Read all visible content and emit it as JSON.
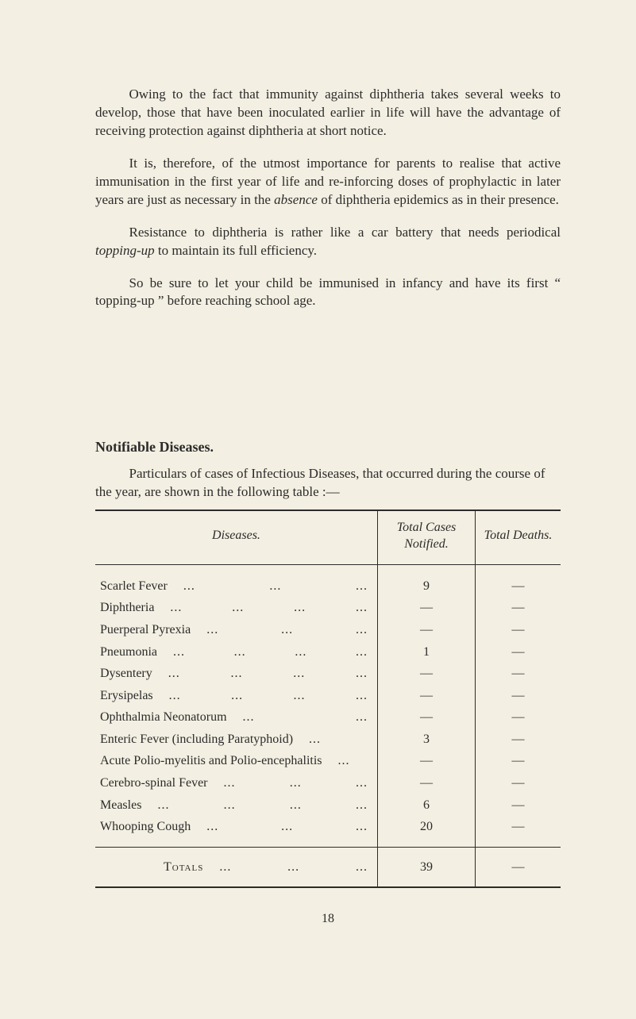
{
  "paragraphs": {
    "p1": "Owing to the fact that immunity against diphtheria takes several weeks to develop, those that have been inoculated earlier in life will have the advantage of receiving protection against diphtheria at short notice.",
    "p2_a": "It is, therefore, of the utmost importance for parents to realise that active immunisation in the first year of life and re-inforcing doses of prophylactic in later years are just as necessary in the ",
    "p2_italic": "absence",
    "p2_b": " of diphtheria epidemics as in their presence.",
    "p3_a": "Resistance to diphtheria is rather like a car battery that needs periodical ",
    "p3_italic": "topping-up",
    "p3_b": " to maintain its full efficiency.",
    "p4": "So be sure to let your child be immunised in infancy and have its first “ topping-up ” before reaching school age."
  },
  "section_heading": "Notifiable Diseases.",
  "lead": "Particulars of cases of Infectious Diseases, that occurred during the course of the year, are shown in the following table :—",
  "table": {
    "headers": {
      "diseases": "Diseases.",
      "cases": "Total Cases Notified.",
      "deaths": "Total Deaths."
    },
    "rows": [
      {
        "label": "Scarlet Fever",
        "dots": 3,
        "cases": "9",
        "deaths": ""
      },
      {
        "label": "Diphtheria",
        "dots": 4,
        "cases": "",
        "deaths": ""
      },
      {
        "label": "Puerperal Pyrexia",
        "dots": 3,
        "cases": "",
        "deaths": ""
      },
      {
        "label": "Pneumonia",
        "dots": 4,
        "cases": "1",
        "deaths": ""
      },
      {
        "label": "Dysentery",
        "dots": 4,
        "cases": "",
        "deaths": ""
      },
      {
        "label": "Erysipelas",
        "dots": 4,
        "cases": "",
        "deaths": ""
      },
      {
        "label": "Ophthalmia Neonatorum",
        "dots": 2,
        "cases": "",
        "deaths": ""
      },
      {
        "label": "Enteric Fever (including Paratyphoid)",
        "dots": 1,
        "cases": "3",
        "deaths": ""
      },
      {
        "label": "Acute Polio-myelitis and Polio-encephalitis",
        "dots": 1,
        "cases": "",
        "deaths": ""
      },
      {
        "label": "Cerebro-spinal Fever",
        "dots": 3,
        "cases": "",
        "deaths": ""
      },
      {
        "label": "Measles",
        "dots": 4,
        "cases": "6",
        "deaths": ""
      },
      {
        "label": "Whooping Cough",
        "dots": 3,
        "cases": "20",
        "deaths": ""
      }
    ],
    "totals": {
      "label": "Totals",
      "dots": 3,
      "cases": "39",
      "deaths": ""
    }
  },
  "page_number": "18"
}
